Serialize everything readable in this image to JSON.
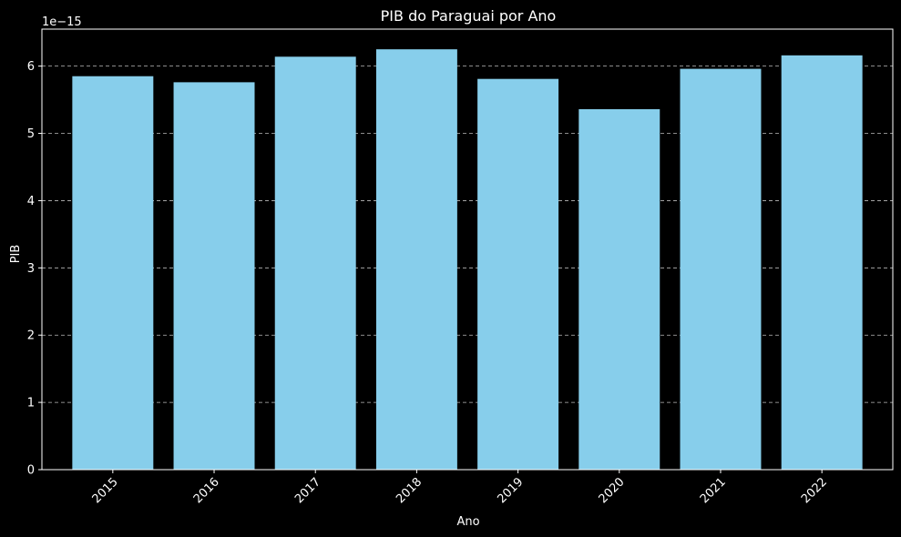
{
  "chart_data": {
    "type": "bar",
    "title": "PIB do Paraguai por Ano",
    "xlabel": "Ano",
    "ylabel": "PIB",
    "y_offset_text": "1e−15",
    "categories": [
      "2015",
      "2016",
      "2017",
      "2018",
      "2019",
      "2020",
      "2021",
      "2022"
    ],
    "values": [
      5.85,
      5.76,
      6.14,
      6.25,
      5.81,
      5.36,
      5.96,
      6.16
    ],
    "ylim": [
      0,
      6.55
    ],
    "yticks": [
      0,
      1,
      2,
      3,
      4,
      5,
      6
    ],
    "grid": "y-dashed",
    "bar_color": "#87ceeb",
    "background_color": "#000000",
    "text_color": "#ffffff",
    "grid_color": "#bbbbbb"
  }
}
